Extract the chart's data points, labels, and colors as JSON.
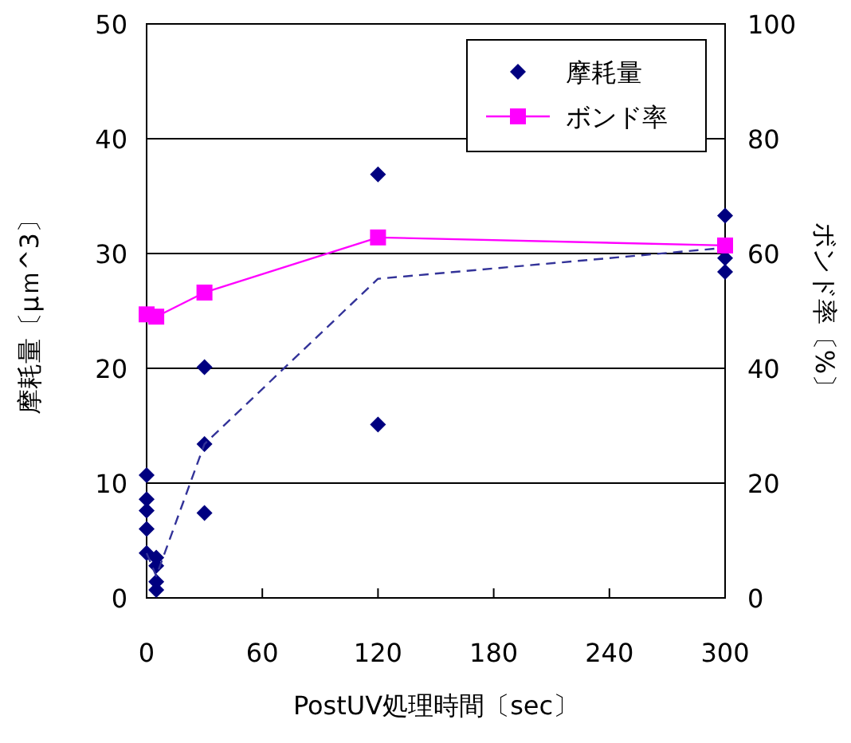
{
  "chart_data": {
    "type": "scatter",
    "xlabel": "PostUV処理時間〔sec〕",
    "ylabel": "摩耗量〔μｍ^3〕",
    "y2label": "ボンド率〔%〕",
    "xlim": [
      0,
      300
    ],
    "xticks": [
      0,
      60,
      120,
      180,
      240,
      300
    ],
    "ylim": [
      0,
      50
    ],
    "yticks": [
      0,
      10,
      20,
      30,
      40,
      50
    ],
    "y2lim": [
      0,
      100
    ],
    "y2ticks": [
      0,
      20,
      40,
      60,
      80,
      100
    ],
    "grid": "y",
    "legend": "top right",
    "series": [
      {
        "name": "摩耗量",
        "marker": "diamond",
        "color": "#000080",
        "x": [
          0,
          0,
          0,
          0,
          0,
          5,
          5,
          5,
          5,
          30,
          30,
          30,
          120,
          120,
          300,
          300,
          300
        ],
        "values": [
          10.7,
          8.6,
          7.6,
          6.0,
          3.9,
          3.5,
          2.8,
          1.4,
          0.7,
          20.1,
          13.4,
          7.4,
          36.9,
          15.1,
          33.3,
          29.6,
          28.4
        ]
      },
      {
        "type": "line",
        "line_style": "dashed",
        "marker": "none",
        "color": "#333399",
        "x": [
          0,
          5,
          30,
          120,
          300
        ],
        "values": [
          3.9,
          1.9,
          13.4,
          27.8,
          30.5
        ]
      },
      {
        "name": "ボンド率",
        "type": "line",
        "marker": "square",
        "line_style": "solid",
        "axis": "y2",
        "color": "#ff00ff",
        "x": [
          0,
          5,
          30,
          120,
          300
        ],
        "values": [
          49.4,
          49.0,
          53.2,
          62.8,
          61.4
        ]
      }
    ]
  }
}
